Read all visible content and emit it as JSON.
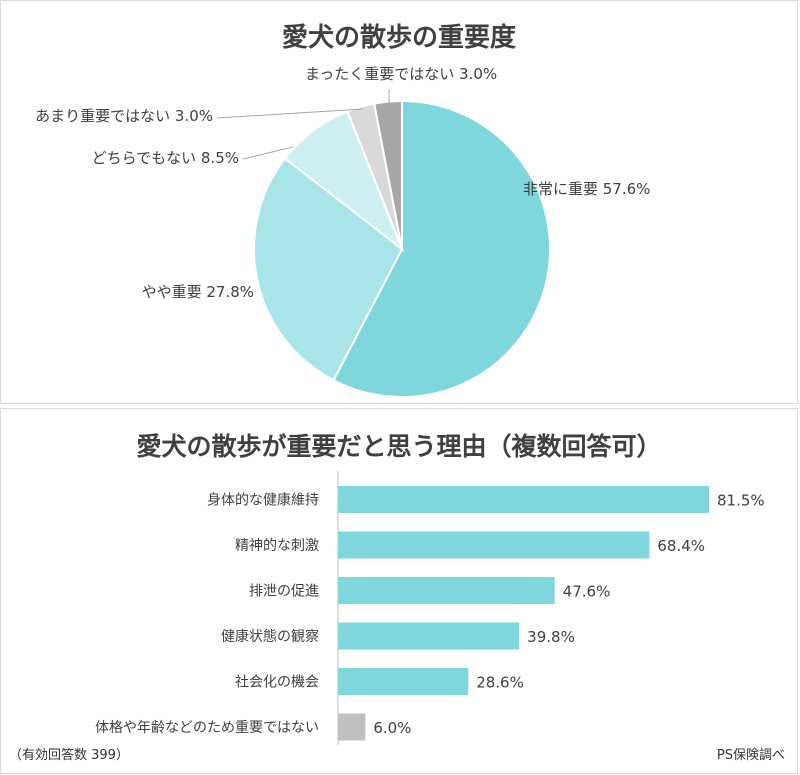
{
  "charts": {
    "pie_title": "愛犬の散歩の重要度",
    "bar_title": "愛犬の散歩が重要だと思う理由（複数回答可）"
  },
  "footer": {
    "respondents": "（有効回答数 399）",
    "source": "PS保険調べ"
  },
  "colors": {
    "c1": "#7fd6dd",
    "c2": "#a9e4e8",
    "c3": "#cdeff1",
    "c4": "#d9d9d9",
    "c5": "#a6a6a6",
    "bar": "#7fd6dd",
    "bar_gray": "#bfbfbf"
  },
  "chart_data": [
    {
      "type": "pie",
      "title": "愛犬の散歩の重要度",
      "slices": [
        {
          "label": "非常に重要",
          "value": 57.6,
          "display": "57.6%"
        },
        {
          "label": "やや重要",
          "value": 27.8,
          "display": "27.8%"
        },
        {
          "label": "どちらでもない",
          "value": 8.5,
          "display": "8.5%"
        },
        {
          "label": "あまり重要ではない",
          "value": 3.0,
          "display": "3.0%"
        },
        {
          "label": "まったく重要ではない",
          "value": 3.0,
          "display": "3.0%"
        }
      ]
    },
    {
      "type": "bar",
      "orientation": "horizontal",
      "title": "愛犬の散歩が重要だと思う理由（複数回答可）",
      "categories": [
        "身体的な健康維持",
        "精神的な刺激",
        "排泄の促進",
        "健康状態の観察",
        "社会化の機会",
        "体格や年齢などのため重要ではない"
      ],
      "values": [
        81.5,
        68.4,
        47.6,
        39.8,
        28.6,
        6.0
      ],
      "value_labels": [
        "81.5%",
        "68.4%",
        "47.6%",
        "39.8%",
        "28.6%",
        "6.0%"
      ],
      "xlim": [
        0,
        100
      ]
    }
  ]
}
